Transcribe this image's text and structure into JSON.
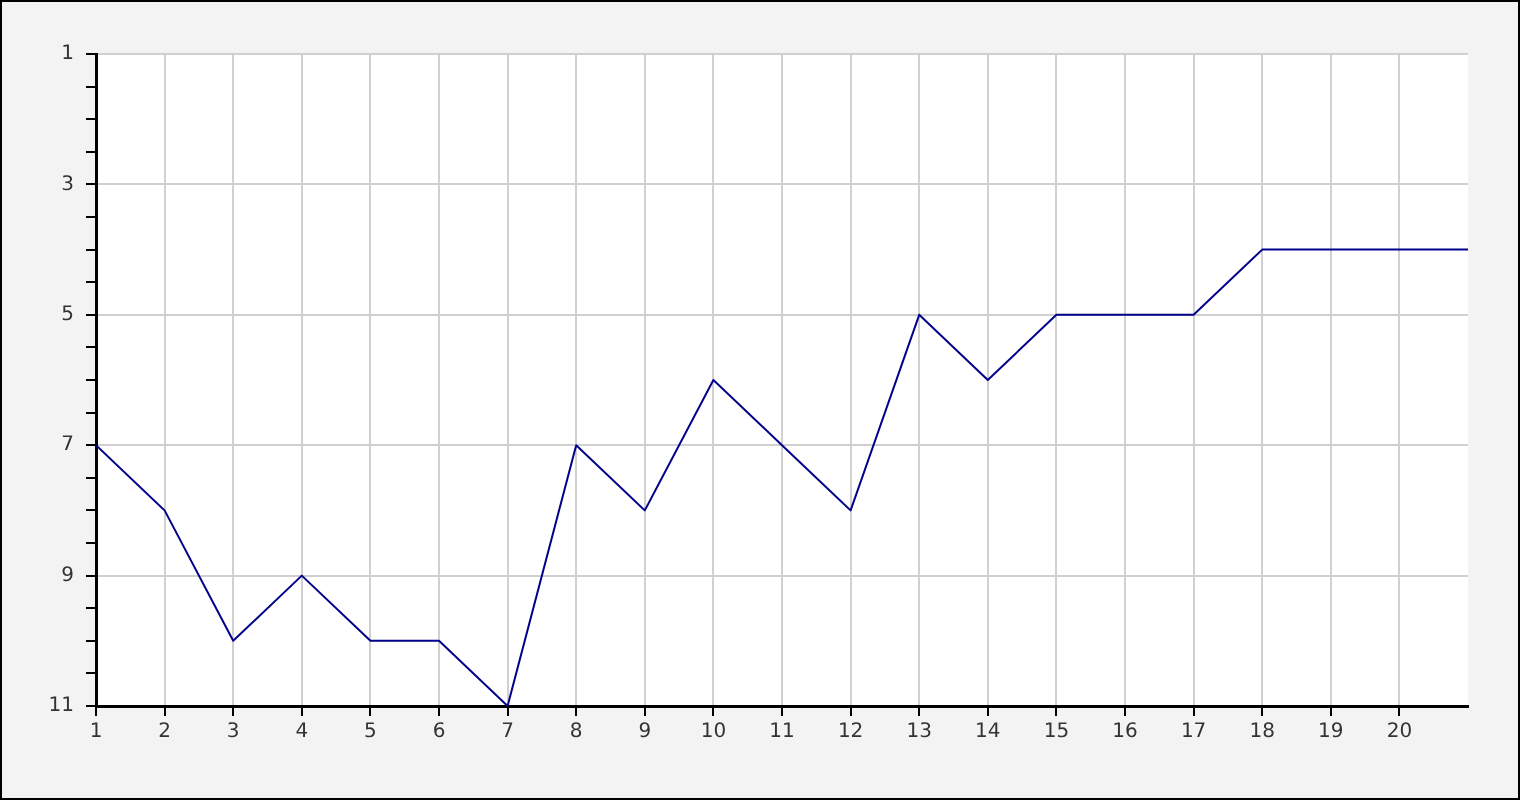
{
  "chart_data": {
    "type": "line",
    "x": [
      1,
      2,
      3,
      4,
      5,
      6,
      7,
      8,
      9,
      10,
      11,
      12,
      13,
      14,
      15,
      16,
      17,
      18,
      19,
      20,
      21
    ],
    "series": [
      {
        "color": "#00008b",
        "values": [
          7,
          8,
          10,
          9,
          10,
          10,
          11,
          7,
          8,
          6,
          7,
          8,
          5,
          6,
          5,
          5,
          5,
          4,
          4,
          4,
          4
        ]
      }
    ],
    "xlim": [
      1,
      21
    ],
    "xticks": [
      1,
      2,
      3,
      4,
      5,
      6,
      7,
      8,
      9,
      10,
      11,
      12,
      13,
      14,
      15,
      16,
      17,
      18,
      19,
      20
    ],
    "ylim": [
      11,
      1
    ],
    "yticks": [
      1,
      {
        "value": 1.5,
        "label": null
      },
      {
        "value": 2,
        "label": null
      },
      {
        "value": 2.5,
        "label": null
      },
      3,
      {
        "value": 3.5,
        "label": null
      },
      {
        "value": 4,
        "label": null
      },
      {
        "value": 4.5,
        "label": null
      },
      5,
      {
        "value": 5.5,
        "label": null
      },
      {
        "value": 6,
        "label": null
      },
      {
        "value": 6.5,
        "label": null
      },
      7,
      {
        "value": 7.5,
        "label": null
      },
      {
        "value": 8,
        "label": null
      },
      {
        "value": 8.5,
        "label": null
      },
      9,
      {
        "value": 9.5,
        "label": null
      },
      {
        "value": 10,
        "label": null
      },
      {
        "value": 10.5,
        "label": null
      },
      11
    ],
    "grid": true,
    "legend": false,
    "marker": "none",
    "line_style": "solid"
  }
}
